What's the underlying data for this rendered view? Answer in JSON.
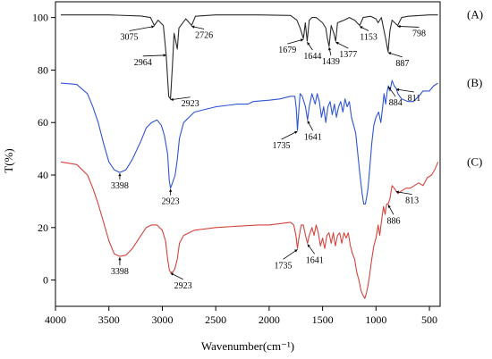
{
  "chart_data": {
    "type": "line",
    "xlabel": "Wavenumber(cm⁻¹)",
    "ylabel": "T(%)",
    "xlim": [
      4000,
      400
    ],
    "ylim": [
      -10,
      106
    ],
    "x_ticks": [
      4000,
      3500,
      3000,
      2500,
      2000,
      1500,
      1000,
      500
    ],
    "y_ticks": [
      0,
      20,
      40,
      60,
      80,
      100
    ],
    "grid": false,
    "legend": "none",
    "series": [
      {
        "name": "(A)",
        "color": "#2b2b2b",
        "points": [
          [
            3950,
            101
          ],
          [
            3500,
            101
          ],
          [
            3200,
            100.6
          ],
          [
            3110,
            100
          ],
          [
            3075,
            97
          ],
          [
            3040,
            99
          ],
          [
            2990,
            97
          ],
          [
            2964,
            86
          ],
          [
            2940,
            70
          ],
          [
            2923,
            69
          ],
          [
            2905,
            82
          ],
          [
            2890,
            94
          ],
          [
            2860,
            88
          ],
          [
            2845,
            96
          ],
          [
            2780,
            99.5
          ],
          [
            2726,
            97
          ],
          [
            2690,
            100.5
          ],
          [
            2500,
            101
          ],
          [
            2100,
            101
          ],
          [
            1800,
            100.8
          ],
          [
            1740,
            99
          ],
          [
            1710,
            96
          ],
          [
            1679,
            92
          ],
          [
            1662,
            98
          ],
          [
            1644,
            91
          ],
          [
            1625,
            99
          ],
          [
            1600,
            100
          ],
          [
            1560,
            100
          ],
          [
            1500,
            98
          ],
          [
            1470,
            96
          ],
          [
            1455,
            92
          ],
          [
            1439,
            89
          ],
          [
            1420,
            97
          ],
          [
            1395,
            94
          ],
          [
            1377,
            91
          ],
          [
            1360,
            98
          ],
          [
            1300,
            99
          ],
          [
            1250,
            100
          ],
          [
            1200,
            99
          ],
          [
            1153,
            97
          ],
          [
            1120,
            100
          ],
          [
            1050,
            100.5
          ],
          [
            1000,
            99.5
          ],
          [
            980,
            98
          ],
          [
            950,
            100
          ],
          [
            910,
            92
          ],
          [
            887,
            87
          ],
          [
            870,
            95
          ],
          [
            850,
            99
          ],
          [
            798,
            97
          ],
          [
            760,
            100
          ],
          [
            700,
            100.5
          ],
          [
            500,
            101
          ],
          [
            420,
            101
          ]
        ]
      },
      {
        "name": "(B)",
        "color": "#2f55d4",
        "points": [
          [
            3950,
            75
          ],
          [
            3800,
            74.5
          ],
          [
            3700,
            71
          ],
          [
            3650,
            66
          ],
          [
            3600,
            60
          ],
          [
            3550,
            52
          ],
          [
            3500,
            45
          ],
          [
            3450,
            42
          ],
          [
            3398,
            41
          ],
          [
            3340,
            42
          ],
          [
            3280,
            46
          ],
          [
            3200,
            53
          ],
          [
            3150,
            58
          ],
          [
            3100,
            60
          ],
          [
            3050,
            61
          ],
          [
            3010,
            59
          ],
          [
            2980,
            55
          ],
          [
            2950,
            48
          ],
          [
            2935,
            38
          ],
          [
            2923,
            35
          ],
          [
            2905,
            37
          ],
          [
            2880,
            40
          ],
          [
            2860,
            46
          ],
          [
            2840,
            54
          ],
          [
            2800,
            60
          ],
          [
            2700,
            64
          ],
          [
            2500,
            66
          ],
          [
            2300,
            67
          ],
          [
            2200,
            67
          ],
          [
            2150,
            68
          ],
          [
            2000,
            68.5
          ],
          [
            1900,
            69
          ],
          [
            1800,
            70
          ],
          [
            1760,
            70
          ],
          [
            1745,
            65
          ],
          [
            1735,
            57
          ],
          [
            1725,
            63
          ],
          [
            1710,
            71
          ],
          [
            1690,
            70
          ],
          [
            1660,
            66
          ],
          [
            1641,
            61
          ],
          [
            1625,
            66
          ],
          [
            1600,
            71
          ],
          [
            1570,
            67
          ],
          [
            1550,
            71
          ],
          [
            1530,
            68
          ],
          [
            1510,
            62
          ],
          [
            1490,
            66
          ],
          [
            1470,
            60
          ],
          [
            1450,
            66
          ],
          [
            1430,
            68
          ],
          [
            1410,
            63
          ],
          [
            1390,
            67
          ],
          [
            1370,
            62
          ],
          [
            1350,
            66
          ],
          [
            1330,
            68
          ],
          [
            1310,
            64
          ],
          [
            1290,
            69
          ],
          [
            1270,
            66
          ],
          [
            1250,
            68
          ],
          [
            1230,
            62
          ],
          [
            1210,
            59
          ],
          [
            1190,
            56
          ],
          [
            1170,
            48
          ],
          [
            1150,
            40
          ],
          [
            1130,
            33
          ],
          [
            1115,
            29
          ],
          [
            1100,
            29
          ],
          [
            1090,
            31
          ],
          [
            1075,
            35
          ],
          [
            1060,
            42
          ],
          [
            1040,
            52
          ],
          [
            1020,
            59
          ],
          [
            1000,
            62
          ],
          [
            975,
            64
          ],
          [
            955,
            60
          ],
          [
            940,
            65
          ],
          [
            925,
            71
          ],
          [
            910,
            67
          ],
          [
            895,
            72
          ],
          [
            884,
            74
          ],
          [
            870,
            72
          ],
          [
            850,
            76
          ],
          [
            830,
            74
          ],
          [
            811,
            73
          ],
          [
            795,
            71
          ],
          [
            760,
            69
          ],
          [
            700,
            68
          ],
          [
            650,
            68
          ],
          [
            600,
            70
          ],
          [
            560,
            72
          ],
          [
            500,
            72
          ],
          [
            460,
            74
          ],
          [
            420,
            75
          ]
        ]
      },
      {
        "name": "(C)",
        "color": "#d4443d",
        "points": [
          [
            3950,
            45
          ],
          [
            3800,
            44
          ],
          [
            3700,
            40
          ],
          [
            3650,
            35
          ],
          [
            3600,
            29
          ],
          [
            3550,
            22
          ],
          [
            3500,
            15
          ],
          [
            3450,
            10
          ],
          [
            3398,
            9
          ],
          [
            3340,
            9.5
          ],
          [
            3280,
            12
          ],
          [
            3200,
            17
          ],
          [
            3150,
            20
          ],
          [
            3100,
            21
          ],
          [
            3050,
            21
          ],
          [
            3000,
            19
          ],
          [
            2970,
            15
          ],
          [
            2950,
            8
          ],
          [
            2935,
            4
          ],
          [
            2923,
            3
          ],
          [
            2905,
            3
          ],
          [
            2885,
            4
          ],
          [
            2860,
            8
          ],
          [
            2840,
            14
          ],
          [
            2800,
            17
          ],
          [
            2700,
            19
          ],
          [
            2500,
            20
          ],
          [
            2300,
            20.5
          ],
          [
            2100,
            21
          ],
          [
            2000,
            21
          ],
          [
            1900,
            21.5
          ],
          [
            1800,
            22
          ],
          [
            1770,
            21
          ],
          [
            1750,
            17
          ],
          [
            1735,
            12
          ],
          [
            1722,
            16
          ],
          [
            1700,
            21
          ],
          [
            1680,
            21
          ],
          [
            1660,
            17
          ],
          [
            1641,
            14
          ],
          [
            1625,
            17
          ],
          [
            1600,
            20
          ],
          [
            1580,
            17
          ],
          [
            1560,
            21
          ],
          [
            1540,
            18
          ],
          [
            1520,
            13
          ],
          [
            1500,
            16
          ],
          [
            1480,
            12
          ],
          [
            1460,
            17
          ],
          [
            1440,
            18
          ],
          [
            1420,
            14
          ],
          [
            1400,
            18
          ],
          [
            1380,
            13
          ],
          [
            1360,
            17
          ],
          [
            1340,
            18
          ],
          [
            1320,
            14
          ],
          [
            1300,
            18
          ],
          [
            1280,
            16
          ],
          [
            1260,
            18
          ],
          [
            1240,
            13
          ],
          [
            1220,
            10
          ],
          [
            1200,
            8
          ],
          [
            1180,
            3
          ],
          [
            1160,
            0
          ],
          [
            1140,
            -4
          ],
          [
            1120,
            -6
          ],
          [
            1105,
            -7
          ],
          [
            1090,
            -5
          ],
          [
            1075,
            -2
          ],
          [
            1060,
            2
          ],
          [
            1040,
            8
          ],
          [
            1020,
            13
          ],
          [
            1000,
            16
          ],
          [
            980,
            21
          ],
          [
            965,
            17
          ],
          [
            950,
            22
          ],
          [
            930,
            28
          ],
          [
            915,
            25
          ],
          [
            900,
            29
          ],
          [
            886,
            29
          ],
          [
            870,
            31
          ],
          [
            850,
            36
          ],
          [
            830,
            35
          ],
          [
            813,
            34
          ],
          [
            795,
            33
          ],
          [
            760,
            34
          ],
          [
            720,
            35
          ],
          [
            680,
            35
          ],
          [
            640,
            36
          ],
          [
            600,
            37
          ],
          [
            560,
            36
          ],
          [
            520,
            39
          ],
          [
            480,
            40
          ],
          [
            450,
            42
          ],
          [
            420,
            45
          ]
        ]
      }
    ],
    "annotations": [
      {
        "series": "(A)",
        "text": "3075",
        "x": 3075,
        "y": 97,
        "dx": -28,
        "dy": 12
      },
      {
        "series": "(A)",
        "text": "2726",
        "x": 2726,
        "y": 97,
        "dx": 14,
        "dy": 10
      },
      {
        "series": "(A)",
        "text": "2964",
        "x": 2964,
        "y": 86,
        "dx": -26,
        "dy": 8
      },
      {
        "series": "(A)",
        "text": "2923",
        "x": 2923,
        "y": 69,
        "dx": 22,
        "dy": 4
      },
      {
        "series": "(A)",
        "text": "1679",
        "x": 1679,
        "y": 92,
        "dx": -18,
        "dy": 12
      },
      {
        "series": "(A)",
        "text": "1644",
        "x": 1644,
        "y": 91,
        "dx": 6,
        "dy": 16
      },
      {
        "series": "(A)",
        "text": "1439",
        "x": 1439,
        "y": 89,
        "dx": 2,
        "dy": 16
      },
      {
        "series": "(A)",
        "text": "1377",
        "x": 1377,
        "y": 91,
        "dx": 14,
        "dy": 14
      },
      {
        "series": "(A)",
        "text": "1153",
        "x": 1153,
        "y": 97,
        "dx": 10,
        "dy": 12
      },
      {
        "series": "(A)",
        "text": "887",
        "x": 887,
        "y": 87,
        "dx": 16,
        "dy": 12
      },
      {
        "series": "(A)",
        "text": "798",
        "x": 798,
        "y": 97,
        "dx": 24,
        "dy": 8
      },
      {
        "series": "(B)",
        "text": "3398",
        "x": 3398,
        "y": 41,
        "dx": 0,
        "dy": 14
      },
      {
        "series": "(B)",
        "text": "2923",
        "x": 2923,
        "y": 35,
        "dx": 0,
        "dy": 14
      },
      {
        "series": "(B)",
        "text": "1735",
        "x": 1735,
        "y": 57,
        "dx": -18,
        "dy": 16
      },
      {
        "series": "(B)",
        "text": "1641",
        "x": 1641,
        "y": 61,
        "dx": 6,
        "dy": 18
      },
      {
        "series": "(B)",
        "text": "884",
        "x": 884,
        "y": 74,
        "dx": 8,
        "dy": 18
      },
      {
        "series": "(B)",
        "text": "811",
        "x": 811,
        "y": 73,
        "dx": 20,
        "dy": 10
      },
      {
        "series": "(C)",
        "text": "3398",
        "x": 3398,
        "y": 9,
        "dx": 0,
        "dy": 16
      },
      {
        "series": "(C)",
        "text": "2923",
        "x": 2923,
        "y": 3,
        "dx": 14,
        "dy": 14
      },
      {
        "series": "(C)",
        "text": "1735",
        "x": 1735,
        "y": 12,
        "dx": -16,
        "dy": 18
      },
      {
        "series": "(C)",
        "text": "1641",
        "x": 1641,
        "y": 14,
        "dx": 8,
        "dy": 18
      },
      {
        "series": "(C)",
        "text": "886",
        "x": 886,
        "y": 29,
        "dx": 6,
        "dy": 18
      },
      {
        "series": "(C)",
        "text": "813",
        "x": 813,
        "y": 34,
        "dx": 18,
        "dy": 10
      }
    ]
  }
}
